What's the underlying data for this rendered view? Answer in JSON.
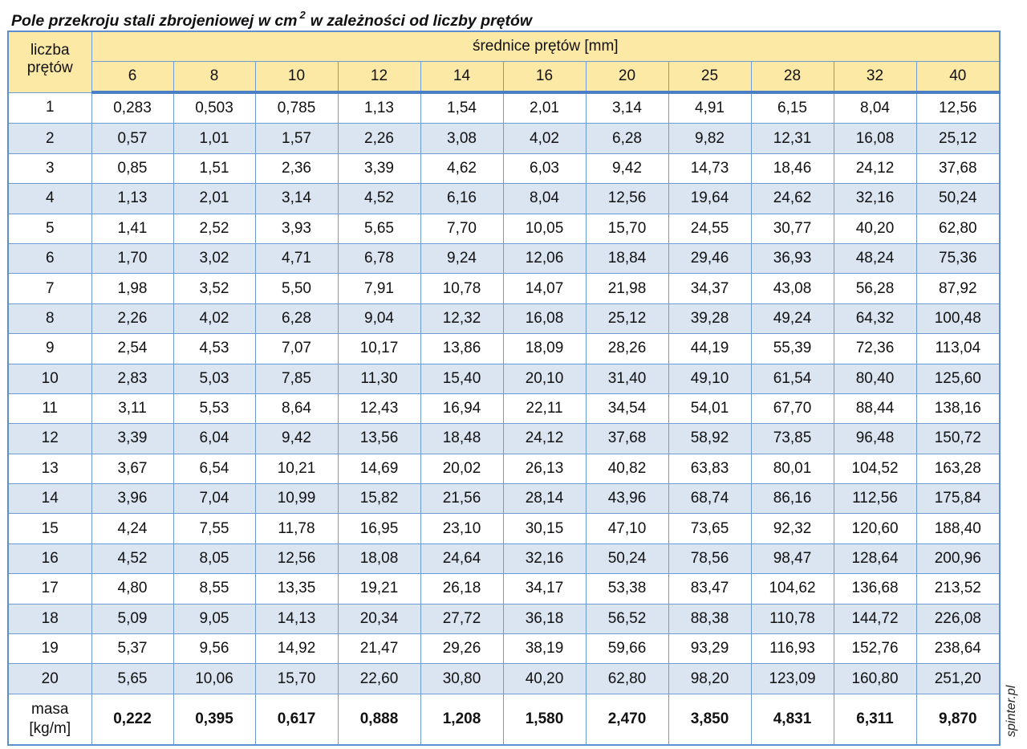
{
  "title": {
    "text": "Pole przekroju stali zbrojeniowej w cm",
    "superscript": "2",
    "suffix": "w zależności od liczby prętów"
  },
  "header": {
    "rows_label_line1": "liczba",
    "rows_label_line2": "prętów",
    "diameters_caption": "średnice prętów [mm]",
    "diameters": [
      "6",
      "8",
      "10",
      "12",
      "14",
      "16",
      "20",
      "25",
      "28",
      "32",
      "40"
    ]
  },
  "rows": [
    {
      "n": "1",
      "values": [
        "0,283",
        "0,503",
        "0,785",
        "1,13",
        "1,54",
        "2,01",
        "3,14",
        "4,91",
        "6,15",
        "8,04",
        "12,56"
      ]
    },
    {
      "n": "2",
      "values": [
        "0,57",
        "1,01",
        "1,57",
        "2,26",
        "3,08",
        "4,02",
        "6,28",
        "9,82",
        "12,31",
        "16,08",
        "25,12"
      ]
    },
    {
      "n": "3",
      "values": [
        "0,85",
        "1,51",
        "2,36",
        "3,39",
        "4,62",
        "6,03",
        "9,42",
        "14,73",
        "18,46",
        "24,12",
        "37,68"
      ]
    },
    {
      "n": "4",
      "values": [
        "1,13",
        "2,01",
        "3,14",
        "4,52",
        "6,16",
        "8,04",
        "12,56",
        "19,64",
        "24,62",
        "32,16",
        "50,24"
      ]
    },
    {
      "n": "5",
      "values": [
        "1,41",
        "2,52",
        "3,93",
        "5,65",
        "7,70",
        "10,05",
        "15,70",
        "24,55",
        "30,77",
        "40,20",
        "62,80"
      ]
    },
    {
      "n": "6",
      "values": [
        "1,70",
        "3,02",
        "4,71",
        "6,78",
        "9,24",
        "12,06",
        "18,84",
        "29,46",
        "36,93",
        "48,24",
        "75,36"
      ]
    },
    {
      "n": "7",
      "values": [
        "1,98",
        "3,52",
        "5,50",
        "7,91",
        "10,78",
        "14,07",
        "21,98",
        "34,37",
        "43,08",
        "56,28",
        "87,92"
      ]
    },
    {
      "n": "8",
      "values": [
        "2,26",
        "4,02",
        "6,28",
        "9,04",
        "12,32",
        "16,08",
        "25,12",
        "39,28",
        "49,24",
        "64,32",
        "100,48"
      ]
    },
    {
      "n": "9",
      "values": [
        "2,54",
        "4,53",
        "7,07",
        "10,17",
        "13,86",
        "18,09",
        "28,26",
        "44,19",
        "55,39",
        "72,36",
        "113,04"
      ]
    },
    {
      "n": "10",
      "values": [
        "2,83",
        "5,03",
        "7,85",
        "11,30",
        "15,40",
        "20,10",
        "31,40",
        "49,10",
        "61,54",
        "80,40",
        "125,60"
      ]
    },
    {
      "n": "11",
      "values": [
        "3,11",
        "5,53",
        "8,64",
        "12,43",
        "16,94",
        "22,11",
        "34,54",
        "54,01",
        "67,70",
        "88,44",
        "138,16"
      ]
    },
    {
      "n": "12",
      "values": [
        "3,39",
        "6,04",
        "9,42",
        "13,56",
        "18,48",
        "24,12",
        "37,68",
        "58,92",
        "73,85",
        "96,48",
        "150,72"
      ]
    },
    {
      "n": "13",
      "values": [
        "3,67",
        "6,54",
        "10,21",
        "14,69",
        "20,02",
        "26,13",
        "40,82",
        "63,83",
        "80,01",
        "104,52",
        "163,28"
      ]
    },
    {
      "n": "14",
      "values": [
        "3,96",
        "7,04",
        "10,99",
        "15,82",
        "21,56",
        "28,14",
        "43,96",
        "68,74",
        "86,16",
        "112,56",
        "175,84"
      ]
    },
    {
      "n": "15",
      "values": [
        "4,24",
        "7,55",
        "11,78",
        "16,95",
        "23,10",
        "30,15",
        "47,10",
        "73,65",
        "92,32",
        "120,60",
        "188,40"
      ]
    },
    {
      "n": "16",
      "values": [
        "4,52",
        "8,05",
        "12,56",
        "18,08",
        "24,64",
        "32,16",
        "50,24",
        "78,56",
        "98,47",
        "128,64",
        "200,96"
      ]
    },
    {
      "n": "17",
      "values": [
        "4,80",
        "8,55",
        "13,35",
        "19,21",
        "26,18",
        "34,17",
        "53,38",
        "83,47",
        "104,62",
        "136,68",
        "213,52"
      ]
    },
    {
      "n": "18",
      "values": [
        "5,09",
        "9,05",
        "14,13",
        "20,34",
        "27,72",
        "36,18",
        "56,52",
        "88,38",
        "110,78",
        "144,72",
        "226,08"
      ]
    },
    {
      "n": "19",
      "values": [
        "5,37",
        "9,56",
        "14,92",
        "21,47",
        "29,26",
        "38,19",
        "59,66",
        "93,29",
        "116,93",
        "152,76",
        "238,64"
      ]
    },
    {
      "n": "20",
      "values": [
        "5,65",
        "10,06",
        "15,70",
        "22,60",
        "30,80",
        "40,20",
        "62,80",
        "98,20",
        "123,09",
        "160,80",
        "251,20"
      ]
    }
  ],
  "mass": {
    "label_line1": "masa",
    "label_line2": "[kg/m]",
    "values": [
      "0,222",
      "0,395",
      "0,617",
      "0,888",
      "1,208",
      "1,580",
      "2,470",
      "3,850",
      "4,831",
      "6,311",
      "9,870"
    ]
  },
  "watermark": "spinter.pl",
  "colors": {
    "header_bg": "#fde9a6",
    "stripe_bg": "#dbe5f2",
    "border": "#6f9bd4"
  }
}
